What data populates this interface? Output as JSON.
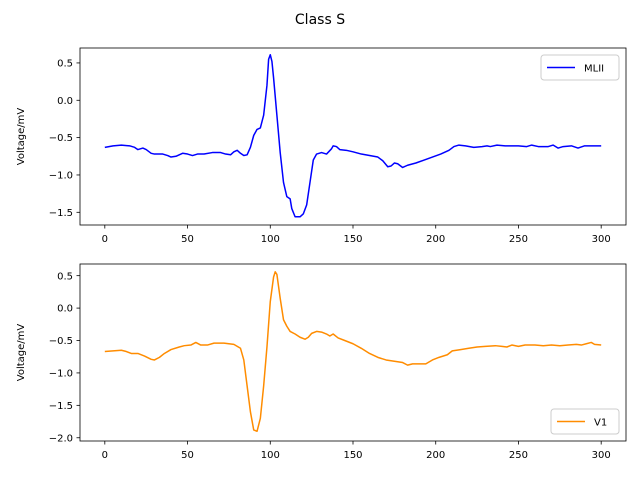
{
  "figure": {
    "suptitle": "Class S"
  },
  "chart_data": [
    {
      "type": "line",
      "title": "",
      "xlabel": "",
      "ylabel": "Voltage/mV",
      "xlim": [
        -15,
        315
      ],
      "ylim": [
        -1.67,
        0.7
      ],
      "x_ticks": [
        0,
        50,
        100,
        150,
        200,
        250,
        300
      ],
      "y_ticks": [
        0.5,
        0.0,
        -0.5,
        -1.0,
        -1.5
      ],
      "y_tick_labels": [
        "0.5",
        "0.0",
        "−0.5",
        "−1.0",
        "−1.5"
      ],
      "grid": false,
      "legend": "upper right",
      "series": [
        {
          "name": "MLII",
          "color": "#0000ff",
          "points": [
            [
              0,
              -0.63
            ],
            [
              5,
              -0.61
            ],
            [
              10,
              -0.6
            ],
            [
              15,
              -0.61
            ],
            [
              18,
              -0.63
            ],
            [
              20,
              -0.66
            ],
            [
              23,
              -0.64
            ],
            [
              25,
              -0.66
            ],
            [
              28,
              -0.71
            ],
            [
              30,
              -0.72
            ],
            [
              35,
              -0.72
            ],
            [
              38,
              -0.74
            ],
            [
              40,
              -0.76
            ],
            [
              43,
              -0.75
            ],
            [
              47,
              -0.71
            ],
            [
              50,
              -0.72
            ],
            [
              53,
              -0.74
            ],
            [
              56,
              -0.72
            ],
            [
              60,
              -0.72
            ],
            [
              65,
              -0.7
            ],
            [
              70,
              -0.7
            ],
            [
              73,
              -0.72
            ],
            [
              76,
              -0.73
            ],
            [
              78,
              -0.69
            ],
            [
              80,
              -0.67
            ],
            [
              82,
              -0.71
            ],
            [
              84,
              -0.74
            ],
            [
              86,
              -0.73
            ],
            [
              88,
              -0.63
            ],
            [
              90,
              -0.47
            ],
            [
              92,
              -0.39
            ],
            [
              94,
              -0.37
            ],
            [
              96,
              -0.2
            ],
            [
              98,
              0.2
            ],
            [
              99,
              0.55
            ],
            [
              100,
              0.61
            ],
            [
              101,
              0.52
            ],
            [
              102,
              0.3
            ],
            [
              104,
              -0.2
            ],
            [
              106,
              -0.7
            ],
            [
              108,
              -1.1
            ],
            [
              110,
              -1.29
            ],
            [
              112,
              -1.32
            ],
            [
              113,
              -1.45
            ],
            [
              115,
              -1.56
            ],
            [
              118,
              -1.56
            ],
            [
              120,
              -1.52
            ],
            [
              122,
              -1.4
            ],
            [
              124,
              -1.1
            ],
            [
              126,
              -0.8
            ],
            [
              128,
              -0.72
            ],
            [
              131,
              -0.7
            ],
            [
              134,
              -0.72
            ],
            [
              137,
              -0.65
            ],
            [
              138,
              -0.61
            ],
            [
              140,
              -0.62
            ],
            [
              142,
              -0.66
            ],
            [
              146,
              -0.67
            ],
            [
              150,
              -0.69
            ],
            [
              155,
              -0.72
            ],
            [
              160,
              -0.74
            ],
            [
              165,
              -0.76
            ],
            [
              168,
              -0.81
            ],
            [
              171,
              -0.89
            ],
            [
              173,
              -0.88
            ],
            [
              175,
              -0.84
            ],
            [
              177,
              -0.85
            ],
            [
              180,
              -0.9
            ],
            [
              183,
              -0.87
            ],
            [
              188,
              -0.84
            ],
            [
              193,
              -0.8
            ],
            [
              198,
              -0.76
            ],
            [
              203,
              -0.72
            ],
            [
              208,
              -0.67
            ],
            [
              211,
              -0.62
            ],
            [
              214,
              -0.6
            ],
            [
              218,
              -0.61
            ],
            [
              223,
              -0.63
            ],
            [
              228,
              -0.62
            ],
            [
              231,
              -0.61
            ],
            [
              233,
              -0.62
            ],
            [
              237,
              -0.6
            ],
            [
              242,
              -0.61
            ],
            [
              250,
              -0.61
            ],
            [
              255,
              -0.62
            ],
            [
              258,
              -0.6
            ],
            [
              262,
              -0.62
            ],
            [
              268,
              -0.62
            ],
            [
              271,
              -0.6
            ],
            [
              274,
              -0.64
            ],
            [
              277,
              -0.62
            ],
            [
              282,
              -0.61
            ],
            [
              286,
              -0.64
            ],
            [
              290,
              -0.61
            ],
            [
              295,
              -0.61
            ],
            [
              300,
              -0.61
            ]
          ]
        }
      ]
    },
    {
      "type": "line",
      "title": "",
      "xlabel": "",
      "ylabel": "Voltage/mV",
      "xlim": [
        -15,
        315
      ],
      "ylim": [
        -2.05,
        0.68
      ],
      "x_ticks": [
        0,
        50,
        100,
        150,
        200,
        250,
        300
      ],
      "y_ticks": [
        0.5,
        0.0,
        -0.5,
        -1.0,
        -1.5,
        -2.0
      ],
      "y_tick_labels": [
        "0.5",
        "0.0",
        "−0.5",
        "−1.0",
        "−1.5",
        "−2.0"
      ],
      "grid": false,
      "legend": "lower right",
      "series": [
        {
          "name": "V1",
          "color": "#ff8c00",
          "points": [
            [
              0,
              -0.67
            ],
            [
              5,
              -0.66
            ],
            [
              10,
              -0.65
            ],
            [
              13,
              -0.67
            ],
            [
              16,
              -0.7
            ],
            [
              20,
              -0.7
            ],
            [
              24,
              -0.74
            ],
            [
              28,
              -0.79
            ],
            [
              30,
              -0.8
            ],
            [
              33,
              -0.76
            ],
            [
              36,
              -0.7
            ],
            [
              40,
              -0.64
            ],
            [
              45,
              -0.6
            ],
            [
              48,
              -0.58
            ],
            [
              52,
              -0.57
            ],
            [
              55,
              -0.53
            ],
            [
              58,
              -0.57
            ],
            [
              62,
              -0.57
            ],
            [
              66,
              -0.54
            ],
            [
              72,
              -0.54
            ],
            [
              78,
              -0.56
            ],
            [
              82,
              -0.62
            ],
            [
              84,
              -0.8
            ],
            [
              86,
              -1.2
            ],
            [
              88,
              -1.6
            ],
            [
              90,
              -1.88
            ],
            [
              92,
              -1.9
            ],
            [
              94,
              -1.7
            ],
            [
              96,
              -1.2
            ],
            [
              98,
              -0.6
            ],
            [
              100,
              0.1
            ],
            [
              102,
              0.48
            ],
            [
              103,
              0.56
            ],
            [
              104,
              0.52
            ],
            [
              106,
              0.15
            ],
            [
              108,
              -0.18
            ],
            [
              110,
              -0.28
            ],
            [
              112,
              -0.36
            ],
            [
              115,
              -0.4
            ],
            [
              118,
              -0.45
            ],
            [
              121,
              -0.48
            ],
            [
              123,
              -0.45
            ],
            [
              125,
              -0.39
            ],
            [
              128,
              -0.36
            ],
            [
              131,
              -0.37
            ],
            [
              134,
              -0.4
            ],
            [
              136,
              -0.43
            ],
            [
              138,
              -0.4
            ],
            [
              141,
              -0.46
            ],
            [
              145,
              -0.5
            ],
            [
              150,
              -0.55
            ],
            [
              155,
              -0.62
            ],
            [
              160,
              -0.7
            ],
            [
              165,
              -0.76
            ],
            [
              170,
              -0.8
            ],
            [
              175,
              -0.82
            ],
            [
              180,
              -0.84
            ],
            [
              183,
              -0.88
            ],
            [
              186,
              -0.86
            ],
            [
              190,
              -0.86
            ],
            [
              194,
              -0.86
            ],
            [
              198,
              -0.8
            ],
            [
              202,
              -0.76
            ],
            [
              207,
              -0.72
            ],
            [
              210,
              -0.66
            ],
            [
              215,
              -0.64
            ],
            [
              220,
              -0.62
            ],
            [
              225,
              -0.6
            ],
            [
              230,
              -0.59
            ],
            [
              236,
              -0.58
            ],
            [
              240,
              -0.59
            ],
            [
              243,
              -0.6
            ],
            [
              246,
              -0.57
            ],
            [
              250,
              -0.59
            ],
            [
              254,
              -0.57
            ],
            [
              260,
              -0.57
            ],
            [
              265,
              -0.58
            ],
            [
              270,
              -0.57
            ],
            [
              275,
              -0.58
            ],
            [
              280,
              -0.57
            ],
            [
              285,
              -0.56
            ],
            [
              288,
              -0.57
            ],
            [
              291,
              -0.55
            ],
            [
              294,
              -0.53
            ],
            [
              296,
              -0.56
            ],
            [
              300,
              -0.57
            ]
          ]
        }
      ]
    }
  ]
}
